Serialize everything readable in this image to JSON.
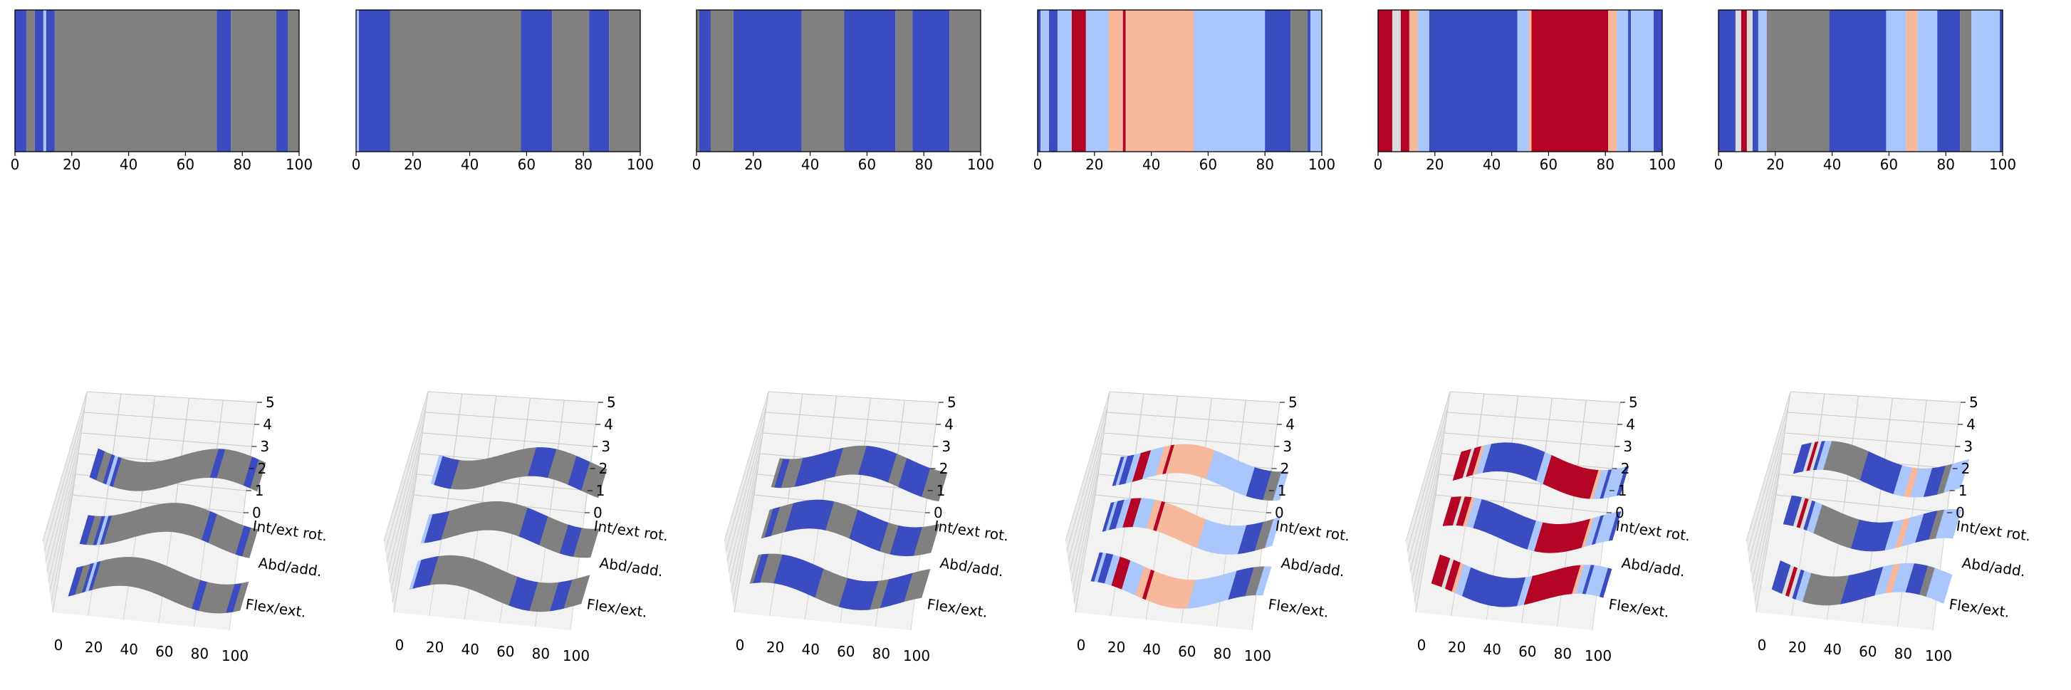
{
  "colors": {
    "gray": "#808080",
    "dark_blue": "#3b4cc0",
    "light_blue": "#aac7fd",
    "salmon": "#f7b89c",
    "dark_red": "#b40426",
    "light_gray_blue": "#dddcdc",
    "pane_face": "#f2f2f2",
    "pane_side": "#ebebeb"
  },
  "chart_data": [
    {
      "type": "heatmap",
      "title": "",
      "xticks": [
        "0",
        "20",
        "40",
        "60",
        "80",
        "100"
      ],
      "xlim": [
        0,
        100
      ],
      "segments": [
        {
          "from": 0,
          "to": 4,
          "color": "dark_blue"
        },
        {
          "from": 4,
          "to": 7,
          "color": "gray"
        },
        {
          "from": 7,
          "to": 10,
          "color": "dark_blue"
        },
        {
          "from": 10,
          "to": 11,
          "color": "light_blue"
        },
        {
          "from": 11,
          "to": 14,
          "color": "dark_blue"
        },
        {
          "from": 14,
          "to": 71,
          "color": "gray"
        },
        {
          "from": 71,
          "to": 76,
          "color": "dark_blue"
        },
        {
          "from": 76,
          "to": 92,
          "color": "gray"
        },
        {
          "from": 92,
          "to": 96,
          "color": "dark_blue"
        },
        {
          "from": 96,
          "to": 100,
          "color": "gray"
        }
      ],
      "surface": {
        "zticks": [
          "0",
          "1",
          "2",
          "3",
          "4",
          "5"
        ],
        "xticks": [
          "0",
          "20",
          "40",
          "60",
          "80",
          "100"
        ],
        "ylabels": [
          "Int/ext rot.",
          "Abd/add.",
          "Flex/ext."
        ]
      }
    },
    {
      "type": "heatmap",
      "title": "",
      "xticks": [
        "0",
        "20",
        "40",
        "60",
        "80",
        "100"
      ],
      "xlim": [
        0,
        100
      ],
      "segments": [
        {
          "from": 0,
          "to": 1,
          "color": "light_blue"
        },
        {
          "from": 1,
          "to": 12,
          "color": "dark_blue"
        },
        {
          "from": 12,
          "to": 58,
          "color": "gray"
        },
        {
          "from": 58,
          "to": 69,
          "color": "dark_blue"
        },
        {
          "from": 69,
          "to": 82,
          "color": "gray"
        },
        {
          "from": 82,
          "to": 89,
          "color": "dark_blue"
        },
        {
          "from": 89,
          "to": 100,
          "color": "gray"
        }
      ],
      "surface": {
        "zticks": [
          "0",
          "1",
          "2",
          "3",
          "4",
          "5"
        ],
        "xticks": [
          "0",
          "20",
          "40",
          "60",
          "80",
          "100"
        ],
        "ylabels": [
          "Int/ext rot.",
          "Abd/add.",
          "Flex/ext."
        ]
      }
    },
    {
      "type": "heatmap",
      "title": "",
      "xticks": [
        "0",
        "20",
        "40",
        "60",
        "80",
        "100"
      ],
      "xlim": [
        0,
        100
      ],
      "segments": [
        {
          "from": 0,
          "to": 1,
          "color": "gray"
        },
        {
          "from": 1,
          "to": 5,
          "color": "dark_blue"
        },
        {
          "from": 5,
          "to": 13,
          "color": "gray"
        },
        {
          "from": 13,
          "to": 37,
          "color": "dark_blue"
        },
        {
          "from": 37,
          "to": 52,
          "color": "gray"
        },
        {
          "from": 52,
          "to": 70,
          "color": "dark_blue"
        },
        {
          "from": 70,
          "to": 76,
          "color": "gray"
        },
        {
          "from": 76,
          "to": 89,
          "color": "dark_blue"
        },
        {
          "from": 89,
          "to": 100,
          "color": "gray"
        }
      ],
      "surface": {
        "zticks": [
          "0",
          "1",
          "2",
          "3",
          "4",
          "5"
        ],
        "xticks": [
          "0",
          "20",
          "40",
          "60",
          "80",
          "100"
        ],
        "ylabels": [
          "Int/ext rot.",
          "Abd/add.",
          "Flex/ext."
        ]
      }
    },
    {
      "type": "heatmap",
      "title": "",
      "xticks": [
        "0",
        "20",
        "40",
        "60",
        "80",
        "100"
      ],
      "xlim": [
        0,
        100
      ],
      "segments": [
        {
          "from": 0,
          "to": 1,
          "color": "dark_blue"
        },
        {
          "from": 1,
          "to": 4,
          "color": "light_blue"
        },
        {
          "from": 4,
          "to": 7,
          "color": "dark_blue"
        },
        {
          "from": 7,
          "to": 12,
          "color": "light_blue"
        },
        {
          "from": 12,
          "to": 17,
          "color": "dark_red"
        },
        {
          "from": 17,
          "to": 25,
          "color": "light_blue"
        },
        {
          "from": 25,
          "to": 30,
          "color": "salmon"
        },
        {
          "from": 30,
          "to": 31,
          "color": "dark_red"
        },
        {
          "from": 31,
          "to": 55,
          "color": "salmon"
        },
        {
          "from": 55,
          "to": 80,
          "color": "light_blue"
        },
        {
          "from": 80,
          "to": 89,
          "color": "dark_blue"
        },
        {
          "from": 89,
          "to": 95,
          "color": "gray"
        },
        {
          "from": 95,
          "to": 96,
          "color": "dark_blue"
        },
        {
          "from": 96,
          "to": 100,
          "color": "light_blue"
        }
      ],
      "surface": {
        "zticks": [
          "0",
          "1",
          "2",
          "3",
          "4",
          "5"
        ],
        "xticks": [
          "0",
          "20",
          "40",
          "60",
          "80",
          "100"
        ],
        "ylabels": [
          "Int/ext rot.",
          "Abd/add.",
          "Flex/ext."
        ]
      }
    },
    {
      "type": "heatmap",
      "title": "",
      "xticks": [
        "0",
        "20",
        "40",
        "60",
        "80",
        "100"
      ],
      "xlim": [
        0,
        100
      ],
      "segments": [
        {
          "from": 0,
          "to": 5,
          "color": "dark_red"
        },
        {
          "from": 5,
          "to": 8,
          "color": "light_gray_blue"
        },
        {
          "from": 8,
          "to": 11,
          "color": "dark_red"
        },
        {
          "from": 11,
          "to": 14,
          "color": "salmon"
        },
        {
          "from": 14,
          "to": 18,
          "color": "light_blue"
        },
        {
          "from": 18,
          "to": 49,
          "color": "dark_blue"
        },
        {
          "from": 49,
          "to": 53,
          "color": "light_blue"
        },
        {
          "from": 53,
          "to": 54,
          "color": "salmon"
        },
        {
          "from": 54,
          "to": 81,
          "color": "dark_red"
        },
        {
          "from": 81,
          "to": 84,
          "color": "salmon"
        },
        {
          "from": 84,
          "to": 88,
          "color": "light_blue"
        },
        {
          "from": 88,
          "to": 89,
          "color": "dark_blue"
        },
        {
          "from": 89,
          "to": 97,
          "color": "light_blue"
        },
        {
          "from": 97,
          "to": 100,
          "color": "dark_blue"
        }
      ],
      "surface": {
        "zticks": [
          "0",
          "1",
          "2",
          "3",
          "4",
          "5"
        ],
        "xticks": [
          "0",
          "20",
          "40",
          "60",
          "80",
          "100"
        ],
        "ylabels": [
          "Int/ext rot.",
          "Abd/add.",
          "Flex/ext."
        ]
      }
    },
    {
      "type": "heatmap",
      "title": "",
      "xticks": [
        "0",
        "20",
        "40",
        "60",
        "80",
        "100"
      ],
      "xlim": [
        0,
        100
      ],
      "segments": [
        {
          "from": 0,
          "to": 6,
          "color": "dark_blue"
        },
        {
          "from": 6,
          "to": 8,
          "color": "light_gray_blue"
        },
        {
          "from": 8,
          "to": 10,
          "color": "dark_red"
        },
        {
          "from": 10,
          "to": 12,
          "color": "light_gray_blue"
        },
        {
          "from": 12,
          "to": 14,
          "color": "dark_blue"
        },
        {
          "from": 14,
          "to": 17,
          "color": "light_blue"
        },
        {
          "from": 17,
          "to": 39,
          "color": "gray"
        },
        {
          "from": 39,
          "to": 59,
          "color": "dark_blue"
        },
        {
          "from": 59,
          "to": 66,
          "color": "light_blue"
        },
        {
          "from": 66,
          "to": 70,
          "color": "salmon"
        },
        {
          "from": 70,
          "to": 77,
          "color": "light_blue"
        },
        {
          "from": 77,
          "to": 85,
          "color": "dark_blue"
        },
        {
          "from": 85,
          "to": 89,
          "color": "gray"
        },
        {
          "from": 89,
          "to": 99,
          "color": "light_blue"
        },
        {
          "from": 99,
          "to": 100,
          "color": "dark_blue"
        }
      ],
      "surface": {
        "zticks": [
          "0",
          "1",
          "2",
          "3",
          "4",
          "5"
        ],
        "xticks": [
          "0",
          "20",
          "40",
          "60",
          "80",
          "100"
        ],
        "ylabels": [
          "Int/ext rot.",
          "Abd/add.",
          "Flex/ext."
        ]
      }
    }
  ]
}
